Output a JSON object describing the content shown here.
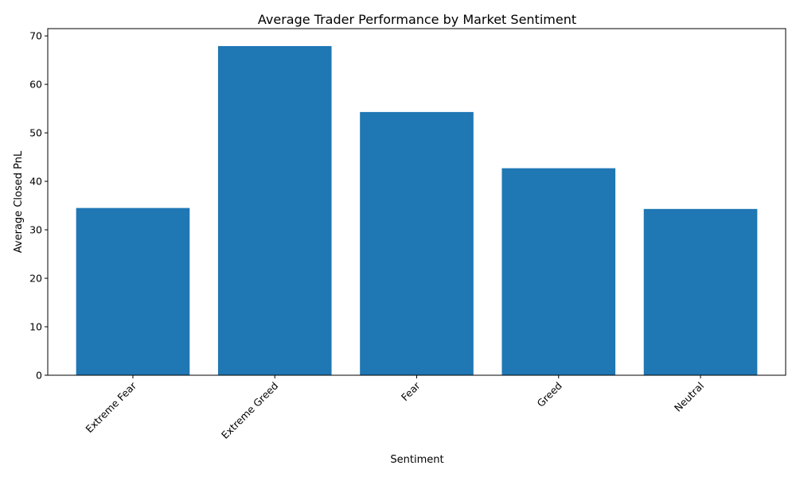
{
  "chart_data": {
    "type": "bar",
    "title": "Average Trader Performance by Market Sentiment",
    "xlabel": "Sentiment",
    "ylabel": "Average Closed PnL",
    "categories": [
      "Extreme Fear",
      "Extreme Greed",
      "Fear",
      "Greed",
      "Neutral"
    ],
    "values": [
      34.5,
      67.9,
      54.3,
      42.7,
      34.3
    ],
    "ylim": [
      0,
      71.5
    ],
    "yticks": [
      0,
      10,
      20,
      30,
      40,
      50,
      60,
      70
    ],
    "bar_color": "#1f77b4",
    "grid": false,
    "xtick_rotation": 45
  }
}
